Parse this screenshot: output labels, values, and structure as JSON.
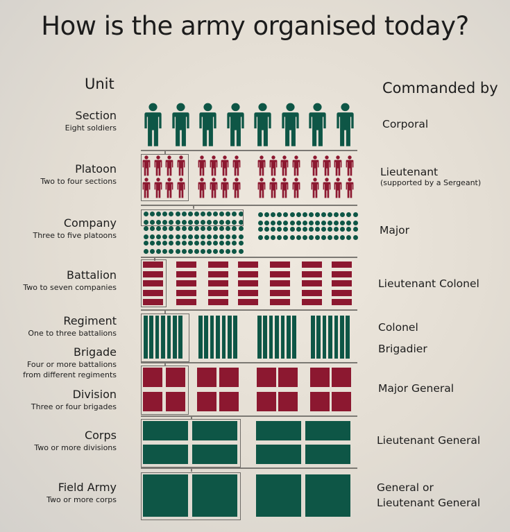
{
  "title": "How is the army organised today?",
  "headers": {
    "unit": "Unit",
    "commanded_by": "Commanded by"
  },
  "colors": {
    "green": "#0e5646",
    "maroon": "#8c1830"
  },
  "units": [
    {
      "name": "Section",
      "desc": "Eight soldiers",
      "commander": "Corporal"
    },
    {
      "name": "Platoon",
      "desc": "Two to four sections",
      "commander": "Lieutenant",
      "commander_note": "(supported by a Sergeant)"
    },
    {
      "name": "Company",
      "desc": "Three to five platoons",
      "commander": "Major"
    },
    {
      "name": "Battalion",
      "desc": "Two to seven companies",
      "commander": "Lieutenant Colonel"
    },
    {
      "name": "Regiment",
      "desc": "One to three battalions",
      "commander": "Colonel"
    },
    {
      "name": "Brigade",
      "desc": "Four or more battalions",
      "desc2": "from different regiments",
      "commander": "Brigadier"
    },
    {
      "name": "Division",
      "desc": "Three or four brigades",
      "commander": "Major General"
    },
    {
      "name": "Corps",
      "desc": "Two or more divisions",
      "commander": "Lieutenant General"
    },
    {
      "name": "Field Army",
      "desc": "Two or more corps",
      "commander": "General or",
      "commander2": "Lieutenant General"
    }
  ]
}
